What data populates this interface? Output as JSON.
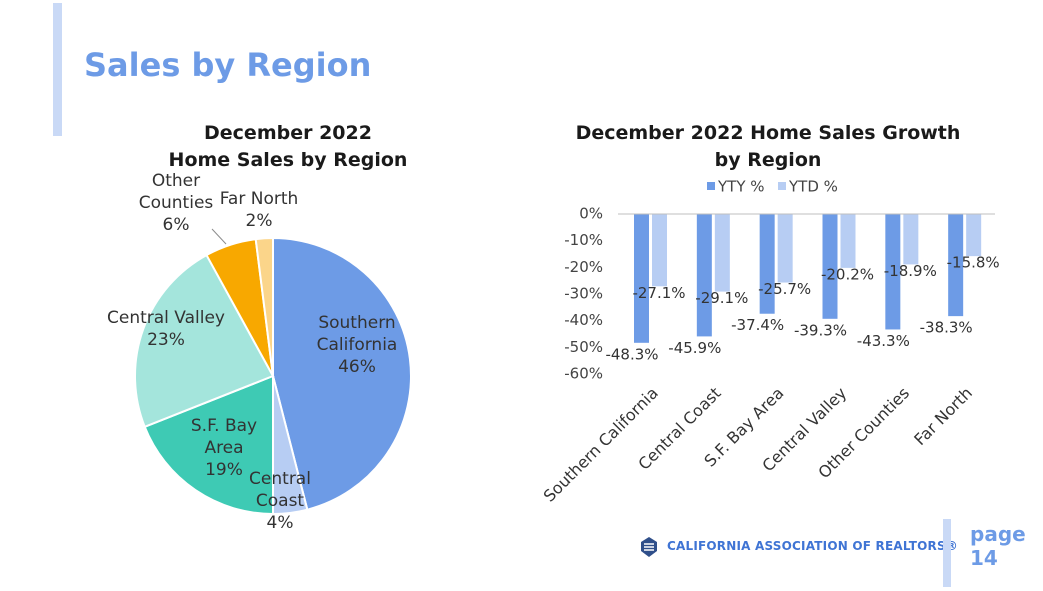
{
  "page": {
    "title": "Sales by Region",
    "label": "page",
    "number": "14"
  },
  "footer": {
    "organization": "CALIFORNIA ASSOCIATION OF REALTORS®",
    "logo_icon": "car-logo-icon"
  },
  "colors": {
    "title": "#6d9be6",
    "accent_bar": "#c9d9f6",
    "yty": "#6d9be6",
    "ytd": "#b7cdf3"
  },
  "chart_data": [
    {
      "type": "pie",
      "title": [
        "December 2022",
        "Home Sales by Region"
      ],
      "slices": [
        {
          "label": [
            "Southern",
            "California"
          ],
          "value": 46,
          "display": "46%",
          "color": "#6d9be6"
        },
        {
          "label": [
            "Central",
            "Coast"
          ],
          "value": 4,
          "display": "4%",
          "color": "#b7cdf3"
        },
        {
          "label": [
            "S.F. Bay",
            "Area"
          ],
          "value": 19,
          "display": "19%",
          "color": "#3ecab4"
        },
        {
          "label": [
            "Central Valley"
          ],
          "value": 23,
          "display": "23%",
          "color": "#a4e5dc"
        },
        {
          "label": [
            "Other",
            "Counties"
          ],
          "value": 6,
          "display": "6%",
          "color": "#f8a800"
        },
        {
          "label": [
            "Far North"
          ],
          "value": 2,
          "display": "2%",
          "color": "#fbd58a"
        }
      ]
    },
    {
      "type": "bar",
      "title": [
        "December 2022 Home Sales Growth",
        "by Region"
      ],
      "legend": "top",
      "categories": [
        "Southern California",
        "Central Coast",
        "S.F. Bay Area",
        "Central Valley",
        "Other Counties",
        "Far North"
      ],
      "series": [
        {
          "name": "YTY %",
          "values": [
            -48.3,
            -45.9,
            -37.4,
            -39.3,
            -43.3,
            -38.3
          ],
          "color": "#6d9be6"
        },
        {
          "name": "YTD %",
          "values": [
            -27.1,
            -29.1,
            -25.7,
            -20.2,
            -18.9,
            -15.8
          ],
          "color": "#b7cdf3"
        }
      ],
      "ylim": [
        -60,
        0
      ],
      "yticks": [
        "0%",
        "-10%",
        "-20%",
        "-30%",
        "-40%",
        "-50%",
        "-60%"
      ]
    }
  ]
}
